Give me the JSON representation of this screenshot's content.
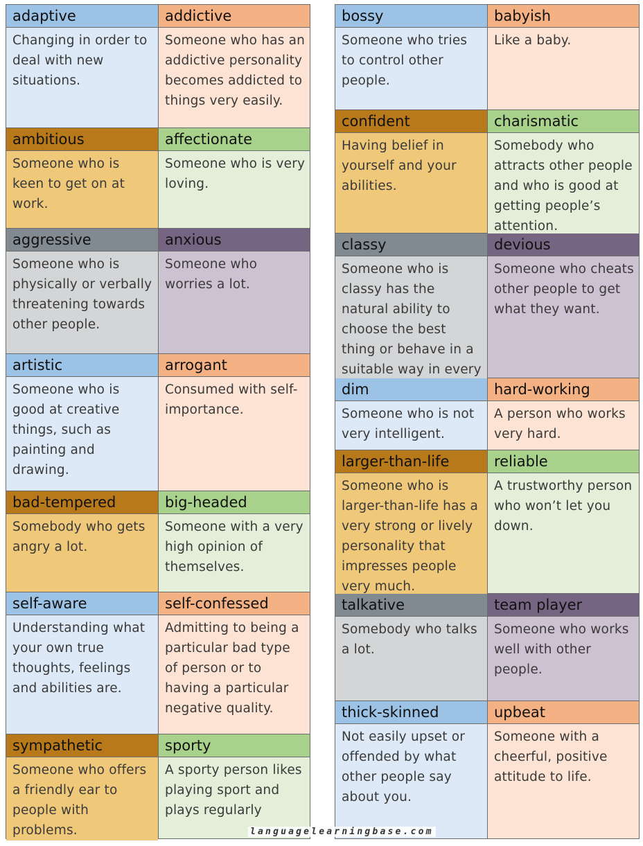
{
  "left_column": [
    {
      "height": 178,
      "cells": [
        {
          "theme": "blue",
          "term": "adaptive",
          "definition": "Changing in order to deal with new situations."
        },
        {
          "theme": "salmon",
          "term": "addictive",
          "definition": "Someone who has an addictive personality becomes addicted to things very easily."
        }
      ]
    },
    {
      "height": 145,
      "cells": [
        {
          "theme": "gold",
          "term": "ambitious",
          "definition": "Someone who is keen to get on at work."
        },
        {
          "theme": "green",
          "term": "affectionate",
          "definition": "Someone who is very loving."
        }
      ]
    },
    {
      "height": 181,
      "cells": [
        {
          "theme": "gray",
          "term": "aggressive",
          "definition": "Someone who is physically or verbally threatening towards other people."
        },
        {
          "theme": "purple",
          "term": "anxious",
          "definition": "Someone who worries a lot."
        }
      ]
    },
    {
      "height": 198,
      "cells": [
        {
          "theme": "blue",
          "term": "artistic",
          "definition": "Someone who is good at creative things, such as painting and drawing."
        },
        {
          "theme": "salmon",
          "term": "arrogant",
          "definition": "Consumed with self-importance."
        }
      ]
    },
    {
      "height": 146,
      "cells": [
        {
          "theme": "gold",
          "term": "bad-tempered",
          "definition": "Somebody who gets angry a lot."
        },
        {
          "theme": "green",
          "term": "big-headed",
          "definition": "Someone with a very high opinion of themselves."
        }
      ]
    },
    {
      "height": 205,
      "cells": [
        {
          "theme": "blue",
          "term": "self-aware",
          "definition": "Understanding what your own true thoughts, feelings and abilities are."
        },
        {
          "theme": "salmon",
          "term": "self-confessed",
          "definition": "Admitting to being a particular bad type of person or to having a particular negative quality."
        }
      ]
    },
    {
      "height": 150,
      "cells": [
        {
          "theme": "gold",
          "term": "sympathetic",
          "definition": "Someone who offers a friendly ear to people with problems."
        },
        {
          "theme": "green",
          "term": "sporty",
          "definition": "A sporty person likes playing sport and plays regularly"
        }
      ]
    }
  ],
  "right_column": [
    {
      "height": 152,
      "cells": [
        {
          "theme": "blue",
          "term": "bossy",
          "definition": "Someone who tries to control other people."
        },
        {
          "theme": "salmon",
          "term": "babyish",
          "definition": "Like a baby."
        }
      ]
    },
    {
      "height": 178,
      "cells": [
        {
          "theme": "gold",
          "term": "confident",
          "definition": "Having belief in yourself and your abilities."
        },
        {
          "theme": "green",
          "term": "charismatic",
          "definition": "Somebody who attracts other people and who is good at getting people’s attention."
        }
      ]
    },
    {
      "height": 209,
      "cells": [
        {
          "theme": "gray",
          "term": "classy",
          "definition": "Someone who is classy has the natural ability to choose the best thing or behave in a suitable way in every situation."
        },
        {
          "theme": "purple",
          "term": "devious",
          "definition": "Someone who cheats other people to get what they want."
        }
      ]
    },
    {
      "height": 104,
      "cells": [
        {
          "theme": "blue",
          "term": "dim",
          "definition": "Someone who is not very intelligent."
        },
        {
          "theme": "salmon",
          "term": "hard-working",
          "definition": "A person who works very hard."
        }
      ]
    },
    {
      "height": 207,
      "cells": [
        {
          "theme": "gold",
          "term": "larger-than-life",
          "definition": "Someone who is larger-than-life has a very strong or lively personality that impresses people very much."
        },
        {
          "theme": "green",
          "term": "reliable",
          "definition": "A trustworthy person who won’t let you down."
        }
      ]
    },
    {
      "height": 155,
      "cells": [
        {
          "theme": "gray",
          "term": "talkative",
          "definition": "Somebody who talks a lot."
        },
        {
          "theme": "purple",
          "term": "team player",
          "definition": "Someone who works well with other people."
        }
      ]
    },
    {
      "height": 198,
      "cells": [
        {
          "theme": "blue",
          "term": "thick-skinned",
          "definition": "Not easily upset or offended by what other people say about you."
        },
        {
          "theme": "salmon",
          "term": "upbeat",
          "definition": "Someone with a cheerful, positive attitude to life."
        }
      ]
    }
  ],
  "watermark": "languagelearningbase.com"
}
